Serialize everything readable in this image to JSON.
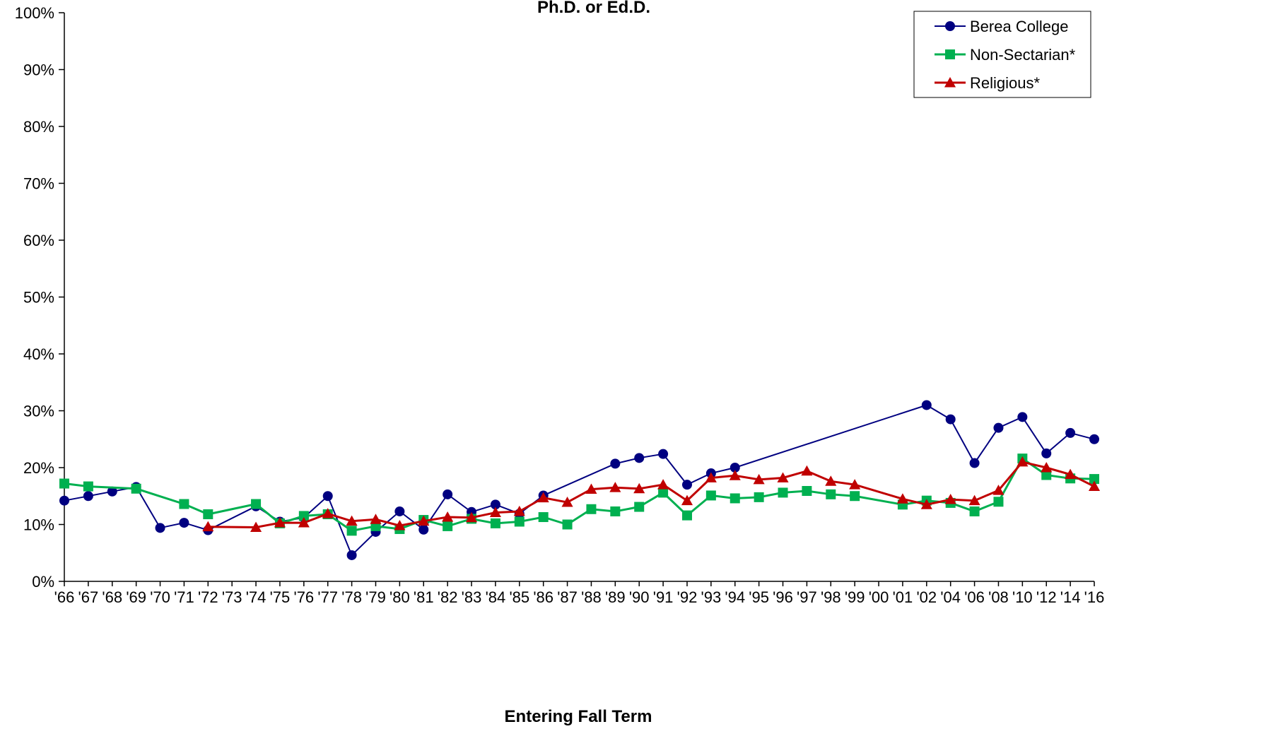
{
  "chart_data": {
    "type": "line",
    "title": "Ph.D. or Ed.D.",
    "xlabel": "Entering Fall Term",
    "ylabel": "",
    "ylim": [
      0,
      100
    ],
    "y_tick_format": "percent",
    "y_ticks": [
      0,
      10,
      20,
      30,
      40,
      50,
      60,
      70,
      80,
      90,
      100
    ],
    "grid": false,
    "legend_position": "top-right",
    "categories": [
      "'66",
      "'67",
      "'68",
      "'69",
      "'70",
      "'71",
      "'72",
      "'73",
      "'74",
      "'75",
      "'76",
      "'77",
      "'78",
      "'79",
      "'80",
      "'81",
      "'82",
      "'83",
      "'84",
      "'85",
      "'86",
      "'87",
      "'88",
      "'89",
      "'90",
      "'91",
      "'92",
      "'93",
      "'94",
      "'95",
      "'96",
      "'97",
      "'98",
      "'99",
      "'00",
      "'01",
      "'02",
      "'04",
      "'06",
      "'08",
      "'10",
      "'12",
      "'14",
      "'16"
    ],
    "series": [
      {
        "name": "Berea College",
        "color": "#000080",
        "marker": "circle",
        "values": [
          14.2,
          15.0,
          15.8,
          16.6,
          9.4,
          10.3,
          9.0,
          null,
          13.2,
          10.5,
          11.2,
          15.0,
          4.6,
          8.7,
          12.3,
          9.1,
          15.3,
          12.2,
          13.5,
          11.9,
          15.1,
          null,
          null,
          20.7,
          21.7,
          22.4,
          17.0,
          19.0,
          20.0,
          null,
          null,
          null,
          null,
          null,
          null,
          null,
          31.0,
          28.5,
          20.8,
          27.0,
          28.9,
          22.5,
          26.1,
          25.0
        ]
      },
      {
        "name": "Non-Sectarian*",
        "color": "#00B050",
        "marker": "square",
        "values": [
          17.2,
          16.7,
          null,
          16.3,
          null,
          13.6,
          11.8,
          null,
          13.6,
          10.2,
          11.5,
          11.8,
          8.9,
          9.7,
          9.2,
          10.8,
          9.7,
          11.0,
          10.2,
          10.5,
          11.3,
          10.0,
          12.7,
          12.3,
          13.1,
          15.6,
          11.6,
          15.1,
          14.6,
          14.8,
          15.6,
          15.9,
          15.3,
          15.0,
          null,
          13.5,
          14.2,
          13.8,
          12.3,
          14.0,
          21.6,
          18.7,
          18.1,
          18.0
        ]
      },
      {
        "name": "Religious*",
        "color": "#C00000",
        "marker": "triangle",
        "values": [
          null,
          null,
          null,
          null,
          null,
          null,
          9.6,
          null,
          9.5,
          10.3,
          10.3,
          11.9,
          10.6,
          10.9,
          9.8,
          10.6,
          11.3,
          11.2,
          12.1,
          12.3,
          14.7,
          13.9,
          16.2,
          16.5,
          16.3,
          17.0,
          14.2,
          18.2,
          18.6,
          17.9,
          18.2,
          19.4,
          17.6,
          17.0,
          null,
          14.5,
          13.5,
          14.4,
          14.2,
          16.0,
          21.0,
          20.0,
          18.8,
          16.7
        ]
      }
    ]
  }
}
